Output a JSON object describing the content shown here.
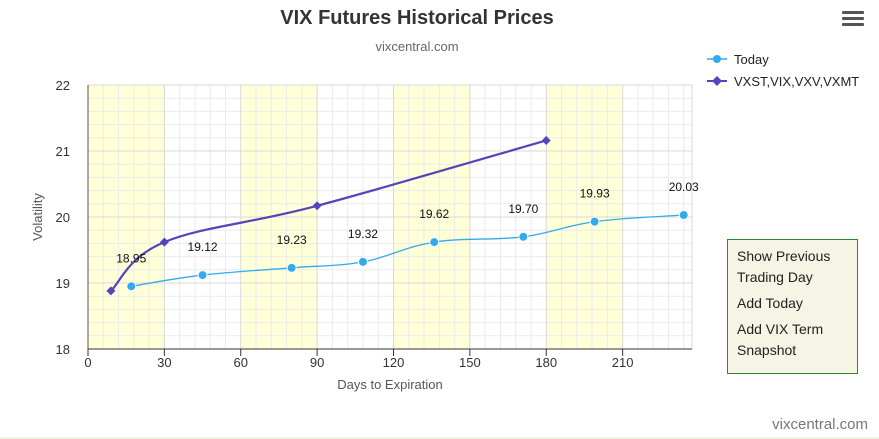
{
  "chart_data": {
    "type": "line",
    "title": "VIX Futures Historical Prices",
    "subtitle": "vixcentral.com",
    "xlabel": "Days to Expiration",
    "ylabel": "Volatility",
    "xlim": [
      0,
      240
    ],
    "ylim": [
      18,
      22
    ],
    "xticks": [
      0,
      30,
      60,
      90,
      120,
      150,
      180,
      210
    ],
    "yticks": [
      18,
      19,
      20,
      21,
      22
    ],
    "bands": [
      [
        0,
        30
      ],
      [
        60,
        90
      ],
      [
        120,
        150
      ],
      [
        180,
        210
      ]
    ],
    "grid": true,
    "legend_position": "top-right",
    "series": [
      {
        "name": "Today",
        "color": "#33aaee",
        "marker": "circle",
        "x": [
          17,
          45,
          80,
          108,
          136,
          171,
          199,
          234
        ],
        "y": [
          18.95,
          19.12,
          19.23,
          19.32,
          19.62,
          19.7,
          19.93,
          20.03
        ],
        "labels": [
          "18.95",
          "19.12",
          "19.23",
          "19.32",
          "19.62",
          "19.70",
          "19.93",
          "20.03"
        ]
      },
      {
        "name": "VXST,VIX,VXV,VXMT",
        "color": "#5544bb",
        "marker": "diamond",
        "x": [
          9,
          30,
          90,
          180
        ],
        "y": [
          18.88,
          19.62,
          20.17,
          21.16
        ]
      }
    ]
  },
  "legend": {
    "items": [
      {
        "label": "Today",
        "color": "#33aaee",
        "marker": "circle"
      },
      {
        "label": "VXST,VIX,VXV,VXMT",
        "color": "#5544bb",
        "marker": "diamond"
      }
    ]
  },
  "menu": {
    "icon": "hamburger-menu-icon",
    "items": [
      "Show Previous Trading Day",
      "Add Today",
      "Add VIX Term Snapshot"
    ]
  },
  "credit": "vixcentral.com"
}
